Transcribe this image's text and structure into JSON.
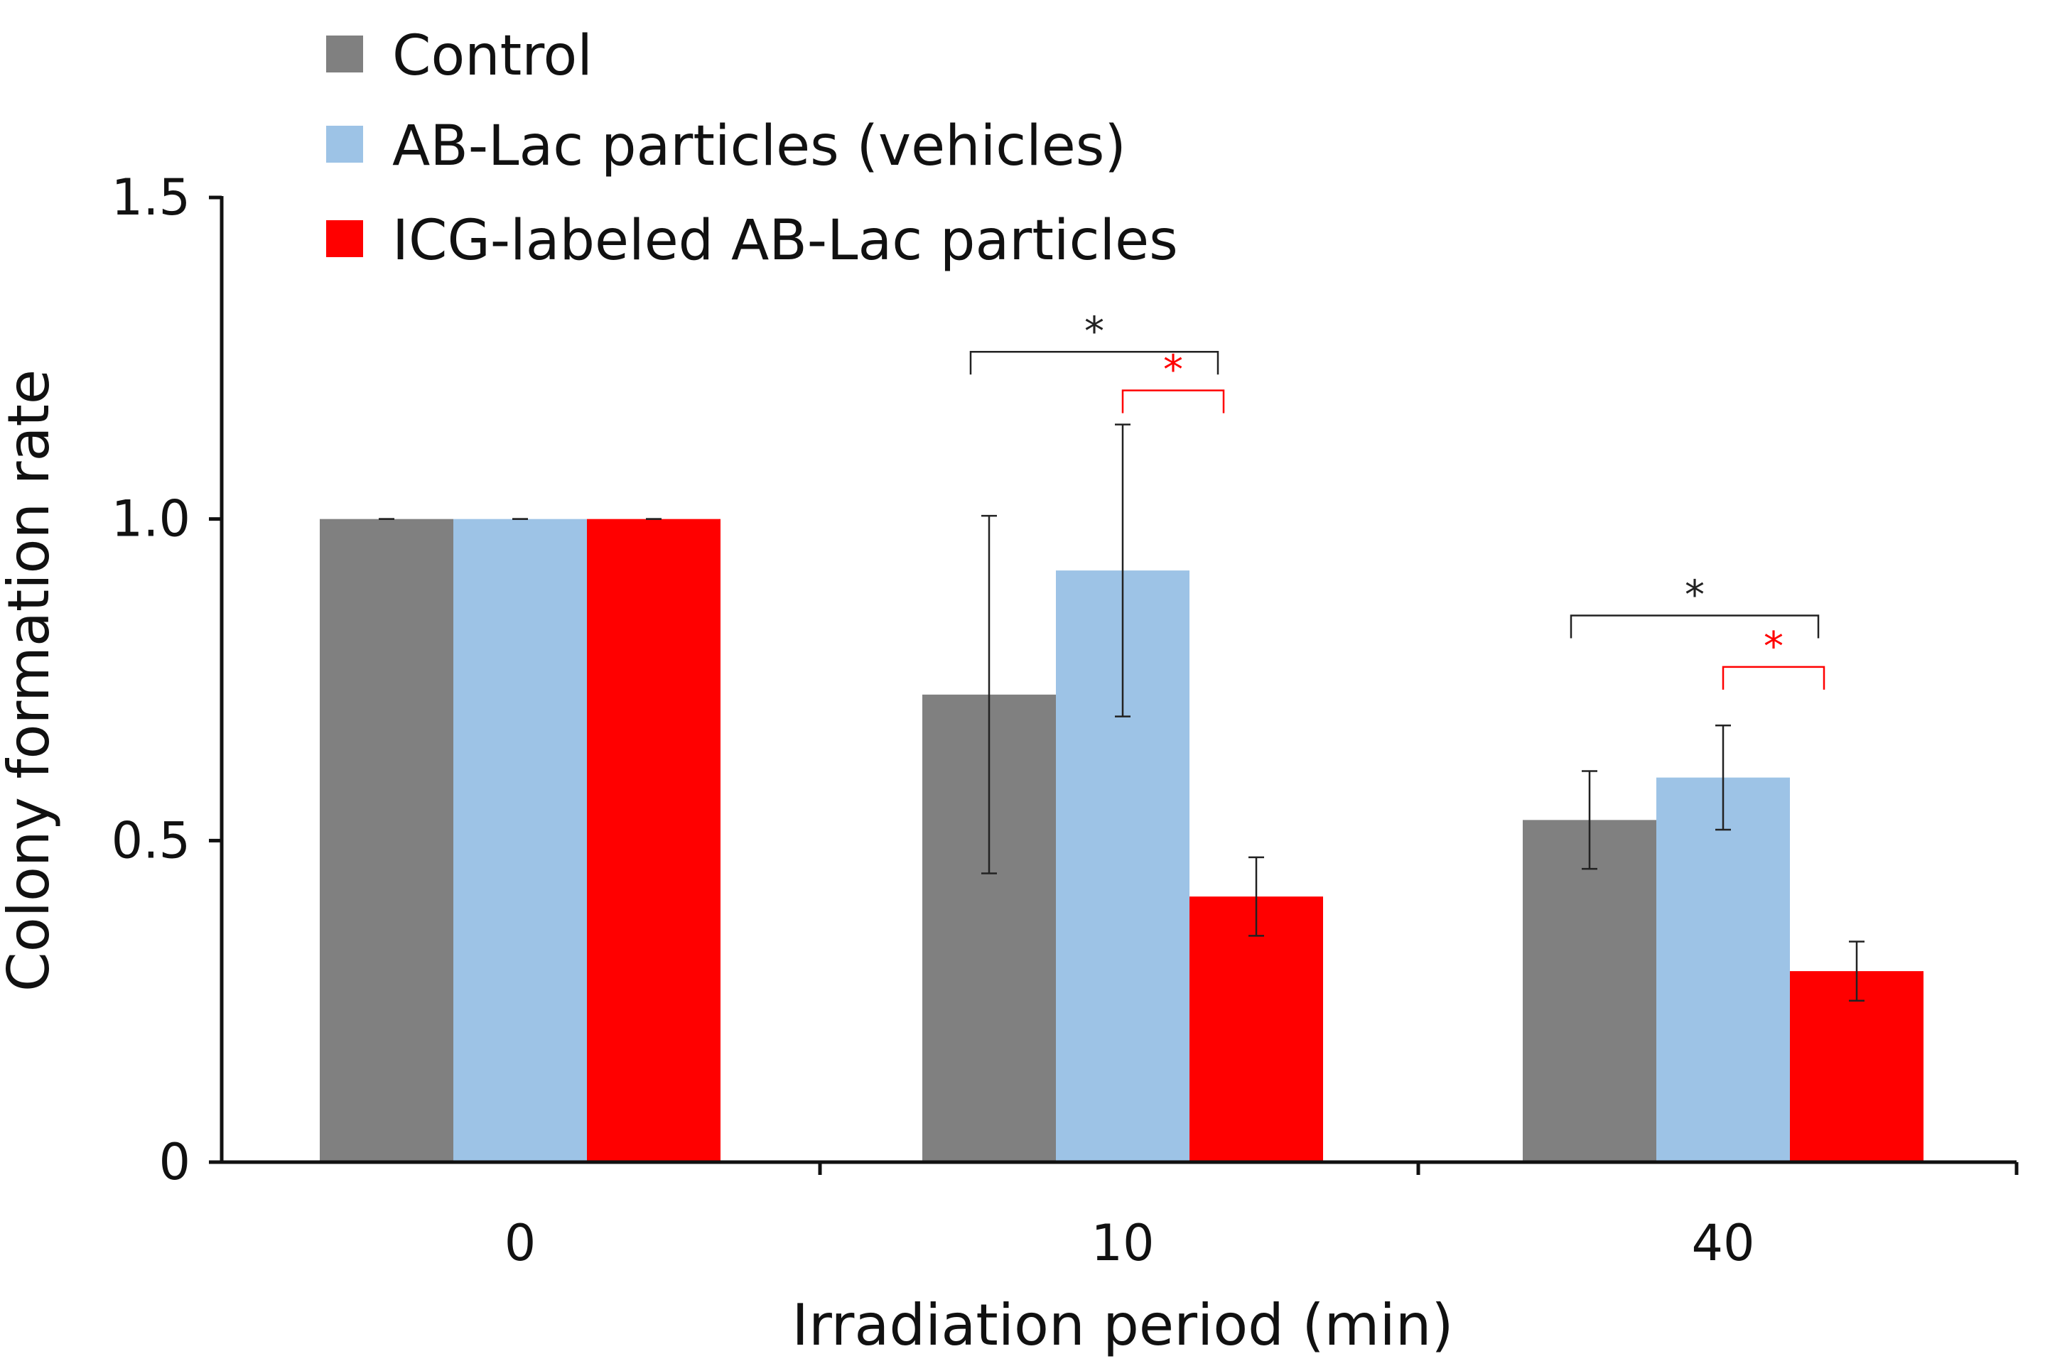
{
  "chart_data": {
    "type": "bar",
    "title": "",
    "xlabel": "Irradiation period (min)",
    "ylabel": "Colony formation rate",
    "categories": [
      "0",
      "10",
      "40"
    ],
    "ylim": [
      0,
      1.5
    ],
    "yticks": [
      {
        "value": 0,
        "label": "0"
      },
      {
        "value": 0.5,
        "label": "0.5"
      },
      {
        "value": 1.0,
        "label": "1.0"
      },
      {
        "value": 1.5,
        "label": "1.5"
      }
    ],
    "grid": false,
    "legend_position": "top-left",
    "series": [
      {
        "name": "Control",
        "color": "#808080",
        "values": [
          1.0,
          0.727,
          0.532
        ],
        "errors": [
          0,
          0.278,
          0.076
        ]
      },
      {
        "name": "AB-Lac particles (vehicles)",
        "color": "#9dc3e6",
        "values": [
          1.0,
          0.92,
          0.598
        ],
        "errors": [
          0,
          0.227,
          0.081
        ]
      },
      {
        "name": "ICG-labeled AB-Lac particles",
        "color": "#ff0000",
        "values": [
          1.0,
          0.413,
          0.297
        ],
        "errors": [
          0,
          0.061,
          0.046
        ]
      }
    ],
    "significance": [
      {
        "category_index": 1,
        "from_series": 0,
        "to_series": 2,
        "label": "*",
        "color": "#222222",
        "level": 1.26
      },
      {
        "category_index": 1,
        "from_series": 1,
        "to_series": 2,
        "label": "*",
        "color": "#ff0000",
        "level": 1.2
      },
      {
        "category_index": 2,
        "from_series": 0,
        "to_series": 2,
        "label": "*",
        "color": "#222222",
        "level": 0.85
      },
      {
        "category_index": 2,
        "from_series": 1,
        "to_series": 2,
        "label": "*",
        "color": "#ff0000",
        "level": 0.77
      }
    ]
  }
}
